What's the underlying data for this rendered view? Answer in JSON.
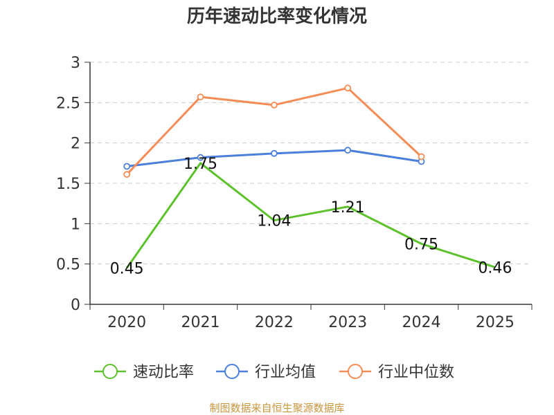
{
  "chart_data": {
    "type": "line",
    "title": "历年速动比率变化情况",
    "categories": [
      "2020",
      "2021",
      "2022",
      "2023",
      "2024",
      "2025"
    ],
    "ylim": [
      0,
      3
    ],
    "yticks": [
      "0",
      "0.5",
      "1",
      "1.5",
      "2",
      "2.5",
      "3"
    ],
    "grid": true,
    "legend_position": "bottom",
    "series": [
      {
        "name": "速动比率",
        "color": "#5cc12b",
        "values": [
          0.45,
          1.75,
          1.04,
          1.21,
          0.75,
          0.46
        ],
        "labels": [
          "0.45",
          "1.75",
          "1.04",
          "1.21",
          "0.75",
          "0.46"
        ],
        "markers": false
      },
      {
        "name": "行业均值",
        "color": "#4a7fdb",
        "values": [
          1.71,
          1.82,
          1.87,
          1.91,
          1.77,
          null
        ],
        "markers": true
      },
      {
        "name": "行业中位数",
        "color": "#f58c55",
        "values": [
          1.61,
          2.57,
          2.47,
          2.68,
          1.83,
          null
        ],
        "markers": true
      }
    ],
    "source": "制图数据来自恒生聚源数据库"
  }
}
